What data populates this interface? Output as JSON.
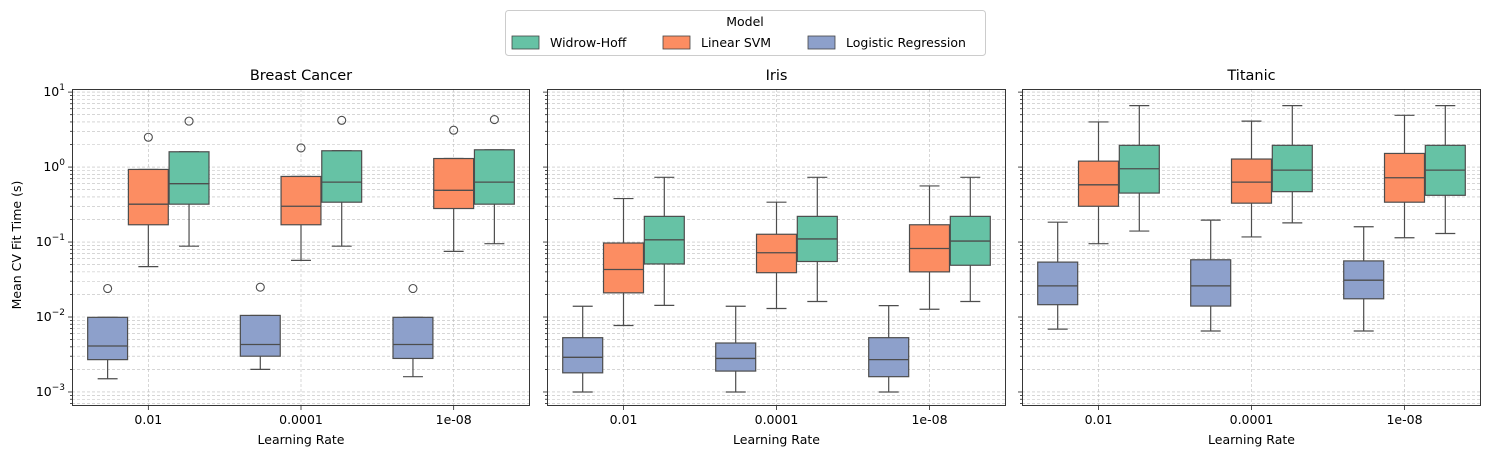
{
  "legend": {
    "title": "Model",
    "entries": [
      {
        "name": "Widrow-Hoff",
        "color": "#66c2a5"
      },
      {
        "name": "Linear SVM",
        "color": "#fc8d62"
      },
      {
        "name": "Logistic Regression",
        "color": "#8da0cb"
      }
    ],
    "placement": "top-center"
  },
  "chart_data": [
    {
      "type": "box",
      "title": "Breast Cancer",
      "xlabel": "Learning Rate",
      "ylabel": "Mean CV Fit Time (s)",
      "yscale": "log",
      "ylim": [
        0.00065,
        11
      ],
      "yticks": [
        "10^-3",
        "10^-2",
        "10^-1",
        "10^0",
        "10^1"
      ],
      "grid": true,
      "categories": [
        "0.01",
        "0.0001",
        "1e-08"
      ],
      "series": [
        {
          "name": "Logistic Regression",
          "color": "#8da0cb",
          "boxes": [
            {
              "whislo": 0.0015,
              "q1": 0.0027,
              "med": 0.0041,
              "q3": 0.0099,
              "whishi": 0.0099,
              "fliers": [
                0.024
              ]
            },
            {
              "whislo": 0.002,
              "q1": 0.003,
              "med": 0.0043,
              "q3": 0.0105,
              "whishi": 0.0105,
              "fliers": [
                0.025
              ]
            },
            {
              "whislo": 0.0016,
              "q1": 0.0028,
              "med": 0.0043,
              "q3": 0.0099,
              "whishi": 0.0099,
              "fliers": [
                0.024
              ]
            }
          ]
        },
        {
          "name": "Linear SVM",
          "color": "#fc8d62",
          "boxes": [
            {
              "whislo": 0.047,
              "q1": 0.17,
              "med": 0.32,
              "q3": 0.93,
              "whishi": 0.93,
              "fliers": [
                2.5
              ]
            },
            {
              "whislo": 0.057,
              "q1": 0.17,
              "med": 0.3,
              "q3": 0.75,
              "whishi": 0.75,
              "fliers": [
                1.8
              ]
            },
            {
              "whislo": 0.075,
              "q1": 0.28,
              "med": 0.49,
              "q3": 1.3,
              "whishi": 1.3,
              "fliers": [
                3.1
              ]
            }
          ]
        },
        {
          "name": "Widrow-Hoff",
          "color": "#66c2a5",
          "boxes": [
            {
              "whislo": 0.088,
              "q1": 0.32,
              "med": 0.6,
              "q3": 1.6,
              "whishi": 1.6,
              "fliers": [
                4.1
              ]
            },
            {
              "whislo": 0.088,
              "q1": 0.34,
              "med": 0.63,
              "q3": 1.65,
              "whishi": 1.65,
              "fliers": [
                4.2
              ]
            },
            {
              "whislo": 0.095,
              "q1": 0.32,
              "med": 0.63,
              "q3": 1.7,
              "whishi": 1.7,
              "fliers": [
                4.3
              ]
            }
          ]
        }
      ]
    },
    {
      "type": "box",
      "title": "Iris",
      "xlabel": "Learning Rate",
      "ylabel": "",
      "yscale": "log",
      "ylim": [
        0.00065,
        11
      ],
      "grid": true,
      "categories": [
        "0.01",
        "0.0001",
        "1e-08"
      ],
      "series": [
        {
          "name": "Logistic Regression",
          "color": "#8da0cb",
          "boxes": [
            {
              "whislo": 0.001,
              "q1": 0.0018,
              "med": 0.0029,
              "q3": 0.0053,
              "whishi": 0.0139,
              "fliers": []
            },
            {
              "whislo": 0.001,
              "q1": 0.0019,
              "med": 0.0028,
              "q3": 0.0045,
              "whishi": 0.0139,
              "fliers": []
            },
            {
              "whislo": 0.001,
              "q1": 0.0016,
              "med": 0.0027,
              "q3": 0.0053,
              "whishi": 0.0142,
              "fliers": []
            }
          ]
        },
        {
          "name": "Linear SVM",
          "color": "#fc8d62",
          "boxes": [
            {
              "whislo": 0.0077,
              "q1": 0.021,
              "med": 0.043,
              "q3": 0.097,
              "whishi": 0.38,
              "fliers": []
            },
            {
              "whislo": 0.013,
              "q1": 0.039,
              "med": 0.072,
              "q3": 0.127,
              "whishi": 0.34,
              "fliers": []
            },
            {
              "whislo": 0.0127,
              "q1": 0.04,
              "med": 0.082,
              "q3": 0.17,
              "whishi": 0.56,
              "fliers": []
            }
          ]
        },
        {
          "name": "Widrow-Hoff",
          "color": "#66c2a5",
          "boxes": [
            {
              "whislo": 0.0143,
              "q1": 0.051,
              "med": 0.107,
              "q3": 0.22,
              "whishi": 0.73,
              "fliers": []
            },
            {
              "whislo": 0.0161,
              "q1": 0.055,
              "med": 0.11,
              "q3": 0.22,
              "whishi": 0.73,
              "fliers": []
            },
            {
              "whislo": 0.0161,
              "q1": 0.049,
              "med": 0.103,
              "q3": 0.22,
              "whishi": 0.73,
              "fliers": []
            }
          ]
        }
      ]
    },
    {
      "type": "box",
      "title": "Titanic",
      "xlabel": "Learning Rate",
      "ylabel": "",
      "yscale": "log",
      "ylim": [
        0.00065,
        11
      ],
      "grid": true,
      "categories": [
        "0.01",
        "0.0001",
        "1e-08"
      ],
      "series": [
        {
          "name": "Logistic Regression",
          "color": "#8da0cb",
          "boxes": [
            {
              "whislo": 0.0069,
              "q1": 0.0146,
              "med": 0.026,
              "q3": 0.054,
              "whishi": 0.184,
              "fliers": []
            },
            {
              "whislo": 0.0065,
              "q1": 0.014,
              "med": 0.026,
              "q3": 0.058,
              "whishi": 0.196,
              "fliers": []
            },
            {
              "whislo": 0.0065,
              "q1": 0.0175,
              "med": 0.031,
              "q3": 0.056,
              "whishi": 0.16,
              "fliers": []
            }
          ]
        },
        {
          "name": "Linear SVM",
          "color": "#fc8d62",
          "boxes": [
            {
              "whislo": 0.095,
              "q1": 0.3,
              "med": 0.58,
              "q3": 1.2,
              "whishi": 4.0,
              "fliers": []
            },
            {
              "whislo": 0.117,
              "q1": 0.33,
              "med": 0.63,
              "q3": 1.28,
              "whishi": 4.1,
              "fliers": []
            },
            {
              "whislo": 0.114,
              "q1": 0.34,
              "med": 0.72,
              "q3": 1.52,
              "whishi": 4.9,
              "fliers": []
            }
          ]
        },
        {
          "name": "Widrow-Hoff",
          "color": "#66c2a5",
          "boxes": [
            {
              "whislo": 0.14,
              "q1": 0.45,
              "med": 0.95,
              "q3": 1.95,
              "whishi": 6.6,
              "fliers": []
            },
            {
              "whislo": 0.18,
              "q1": 0.47,
              "med": 0.91,
              "q3": 1.95,
              "whishi": 6.6,
              "fliers": []
            },
            {
              "whislo": 0.13,
              "q1": 0.42,
              "med": 0.91,
              "q3": 1.95,
              "whishi": 6.6,
              "fliers": []
            }
          ]
        }
      ]
    }
  ]
}
